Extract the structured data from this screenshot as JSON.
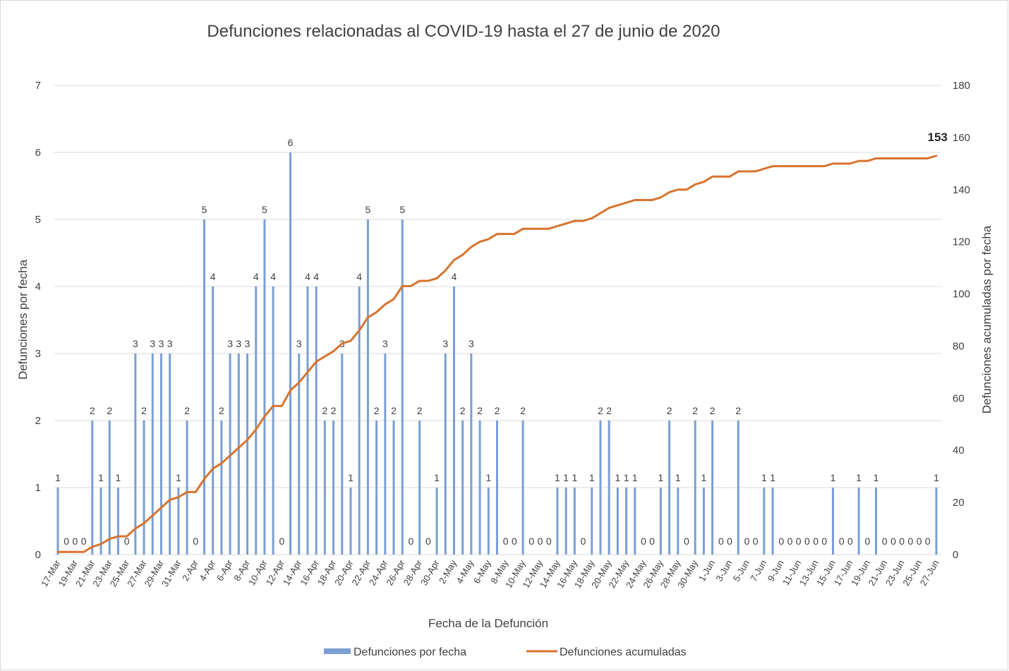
{
  "chart_data": {
    "type": "bar+line",
    "title": "Defunciones relacionadas al COVID-19 hasta el 27 de junio de 2020",
    "xlabel": "Fecha de la Defunción",
    "ylabel_left": "Defunciones por fecha",
    "ylabel_right": "Defunciones acumuladas por fecha",
    "ylim_left": [
      0,
      7
    ],
    "ylim_right": [
      0,
      180
    ],
    "yticks_left": [
      "0",
      "1",
      "2",
      "3",
      "4",
      "5",
      "6",
      "7"
    ],
    "yticks_right": [
      "0",
      "20",
      "40",
      "60",
      "80",
      "100",
      "120",
      "140",
      "160",
      "180"
    ],
    "grid": true,
    "legend_position": "bottom",
    "categories": [
      "17-Mar",
      "18-Mar",
      "19-Mar",
      "20-Mar",
      "21-Mar",
      "22-Mar",
      "23-Mar",
      "24-Mar",
      "25-Mar",
      "26-Mar",
      "27-Mar",
      "28-Mar",
      "29-Mar",
      "30-Mar",
      "31-Mar",
      "1-Apr",
      "2-Apr",
      "3-Apr",
      "4-Apr",
      "5-Apr",
      "6-Apr",
      "7-Apr",
      "8-Apr",
      "9-Apr",
      "10-Apr",
      "11-Apr",
      "12-Apr",
      "13-Apr",
      "14-Apr",
      "15-Apr",
      "16-Apr",
      "17-Apr",
      "18-Apr",
      "19-Apr",
      "20-Apr",
      "21-Apr",
      "22-Apr",
      "23-Apr",
      "24-Apr",
      "25-Apr",
      "26-Apr",
      "27-Apr",
      "28-Apr",
      "29-Apr",
      "30-Apr",
      "1-May",
      "2-May",
      "3-May",
      "4-May",
      "5-May",
      "6-May",
      "7-May",
      "8-May",
      "9-May",
      "10-May",
      "11-May",
      "12-May",
      "13-May",
      "14-May",
      "15-May",
      "16-May",
      "17-May",
      "18-May",
      "19-May",
      "20-May",
      "21-May",
      "22-May",
      "23-May",
      "24-May",
      "25-May",
      "26-May",
      "27-May",
      "28-May",
      "29-May",
      "30-May",
      "31-May",
      "1-Jun",
      "2-Jun",
      "3-Jun",
      "4-Jun",
      "5-Jun",
      "6-Jun",
      "7-Jun",
      "8-Jun",
      "9-Jun",
      "10-Jun",
      "11-Jun",
      "12-Jun",
      "13-Jun",
      "14-Jun",
      "15-Jun",
      "16-Jun",
      "17-Jun",
      "18-Jun",
      "19-Jun",
      "20-Jun",
      "21-Jun",
      "22-Jun",
      "23-Jun",
      "24-Jun",
      "25-Jun",
      "26-Jun",
      "27-Jun"
    ],
    "xtick_labels": [
      "17-Mar",
      "19-Mar",
      "21-Mar",
      "23-Mar",
      "25-Mar",
      "27-Mar",
      "29-Mar",
      "31-Mar",
      "2-Apr",
      "4-Apr",
      "6-Apr",
      "8-Apr",
      "10-Apr",
      "12-Apr",
      "14-Apr",
      "16-Apr",
      "18-Apr",
      "20-Apr",
      "22-Apr",
      "24-Apr",
      "26-Apr",
      "28-Apr",
      "30-Apr",
      "2-May",
      "4-May",
      "6-May",
      "8-May",
      "10-May",
      "12-May",
      "14-May",
      "16-May",
      "18-May",
      "20-May",
      "22-May",
      "24-May",
      "26-May",
      "28-May",
      "30-May",
      "1-Jun",
      "3-Jun",
      "5-Jun",
      "7-Jun",
      "9-Jun",
      "11-Jun",
      "13-Jun",
      "15-Jun",
      "17-Jun",
      "19-Jun",
      "21-Jun",
      "23-Jun",
      "25-Jun",
      "27-Jun"
    ],
    "series": [
      {
        "name": "Defunciones por fecha",
        "type": "bar",
        "axis": "left",
        "color": "#7a9fd4",
        "values": [
          1,
          0,
          0,
          0,
          2,
          1,
          2,
          1,
          0,
          3,
          2,
          3,
          3,
          3,
          1,
          2,
          0,
          5,
          4,
          2,
          3,
          3,
          3,
          4,
          5,
          4,
          0,
          6,
          3,
          4,
          4,
          2,
          2,
          3,
          1,
          4,
          5,
          2,
          3,
          2,
          5,
          0,
          2,
          0,
          1,
          3,
          4,
          2,
          3,
          2,
          1,
          2,
          0,
          0,
          2,
          0,
          0,
          0,
          1,
          1,
          1,
          0,
          1,
          2,
          2,
          1,
          1,
          1,
          0,
          0,
          1,
          2,
          1,
          0,
          2,
          1,
          2,
          0,
          0,
          2,
          0,
          0,
          1,
          1,
          0,
          0,
          0,
          0,
          0,
          0,
          1,
          0,
          0,
          1,
          0,
          1,
          0,
          0,
          0,
          0,
          0,
          0,
          1
        ]
      },
      {
        "name": "Defunciones acumuladas",
        "type": "line",
        "axis": "right",
        "color": "#d7742e",
        "values": [
          1,
          1,
          1,
          1,
          3,
          4,
          6,
          7,
          7,
          10,
          12,
          15,
          18,
          21,
          22,
          24,
          24,
          29,
          33,
          35,
          38,
          41,
          44,
          48,
          53,
          57,
          57,
          63,
          66,
          70,
          74,
          76,
          78,
          81,
          82,
          86,
          91,
          93,
          96,
          98,
          103,
          103,
          105,
          105,
          106,
          109,
          113,
          115,
          118,
          120,
          121,
          123,
          123,
          123,
          125,
          125,
          125,
          125,
          126,
          127,
          128,
          128,
          129,
          131,
          133,
          134,
          135,
          136,
          136,
          136,
          137,
          139,
          140,
          140,
          142,
          143,
          145,
          145,
          145,
          147,
          147,
          147,
          148,
          149,
          149,
          149,
          149,
          149,
          149,
          149,
          150,
          150,
          150,
          151,
          151,
          152,
          152,
          152,
          152,
          152,
          152,
          152,
          153
        ]
      }
    ],
    "last_value_label": "153"
  }
}
